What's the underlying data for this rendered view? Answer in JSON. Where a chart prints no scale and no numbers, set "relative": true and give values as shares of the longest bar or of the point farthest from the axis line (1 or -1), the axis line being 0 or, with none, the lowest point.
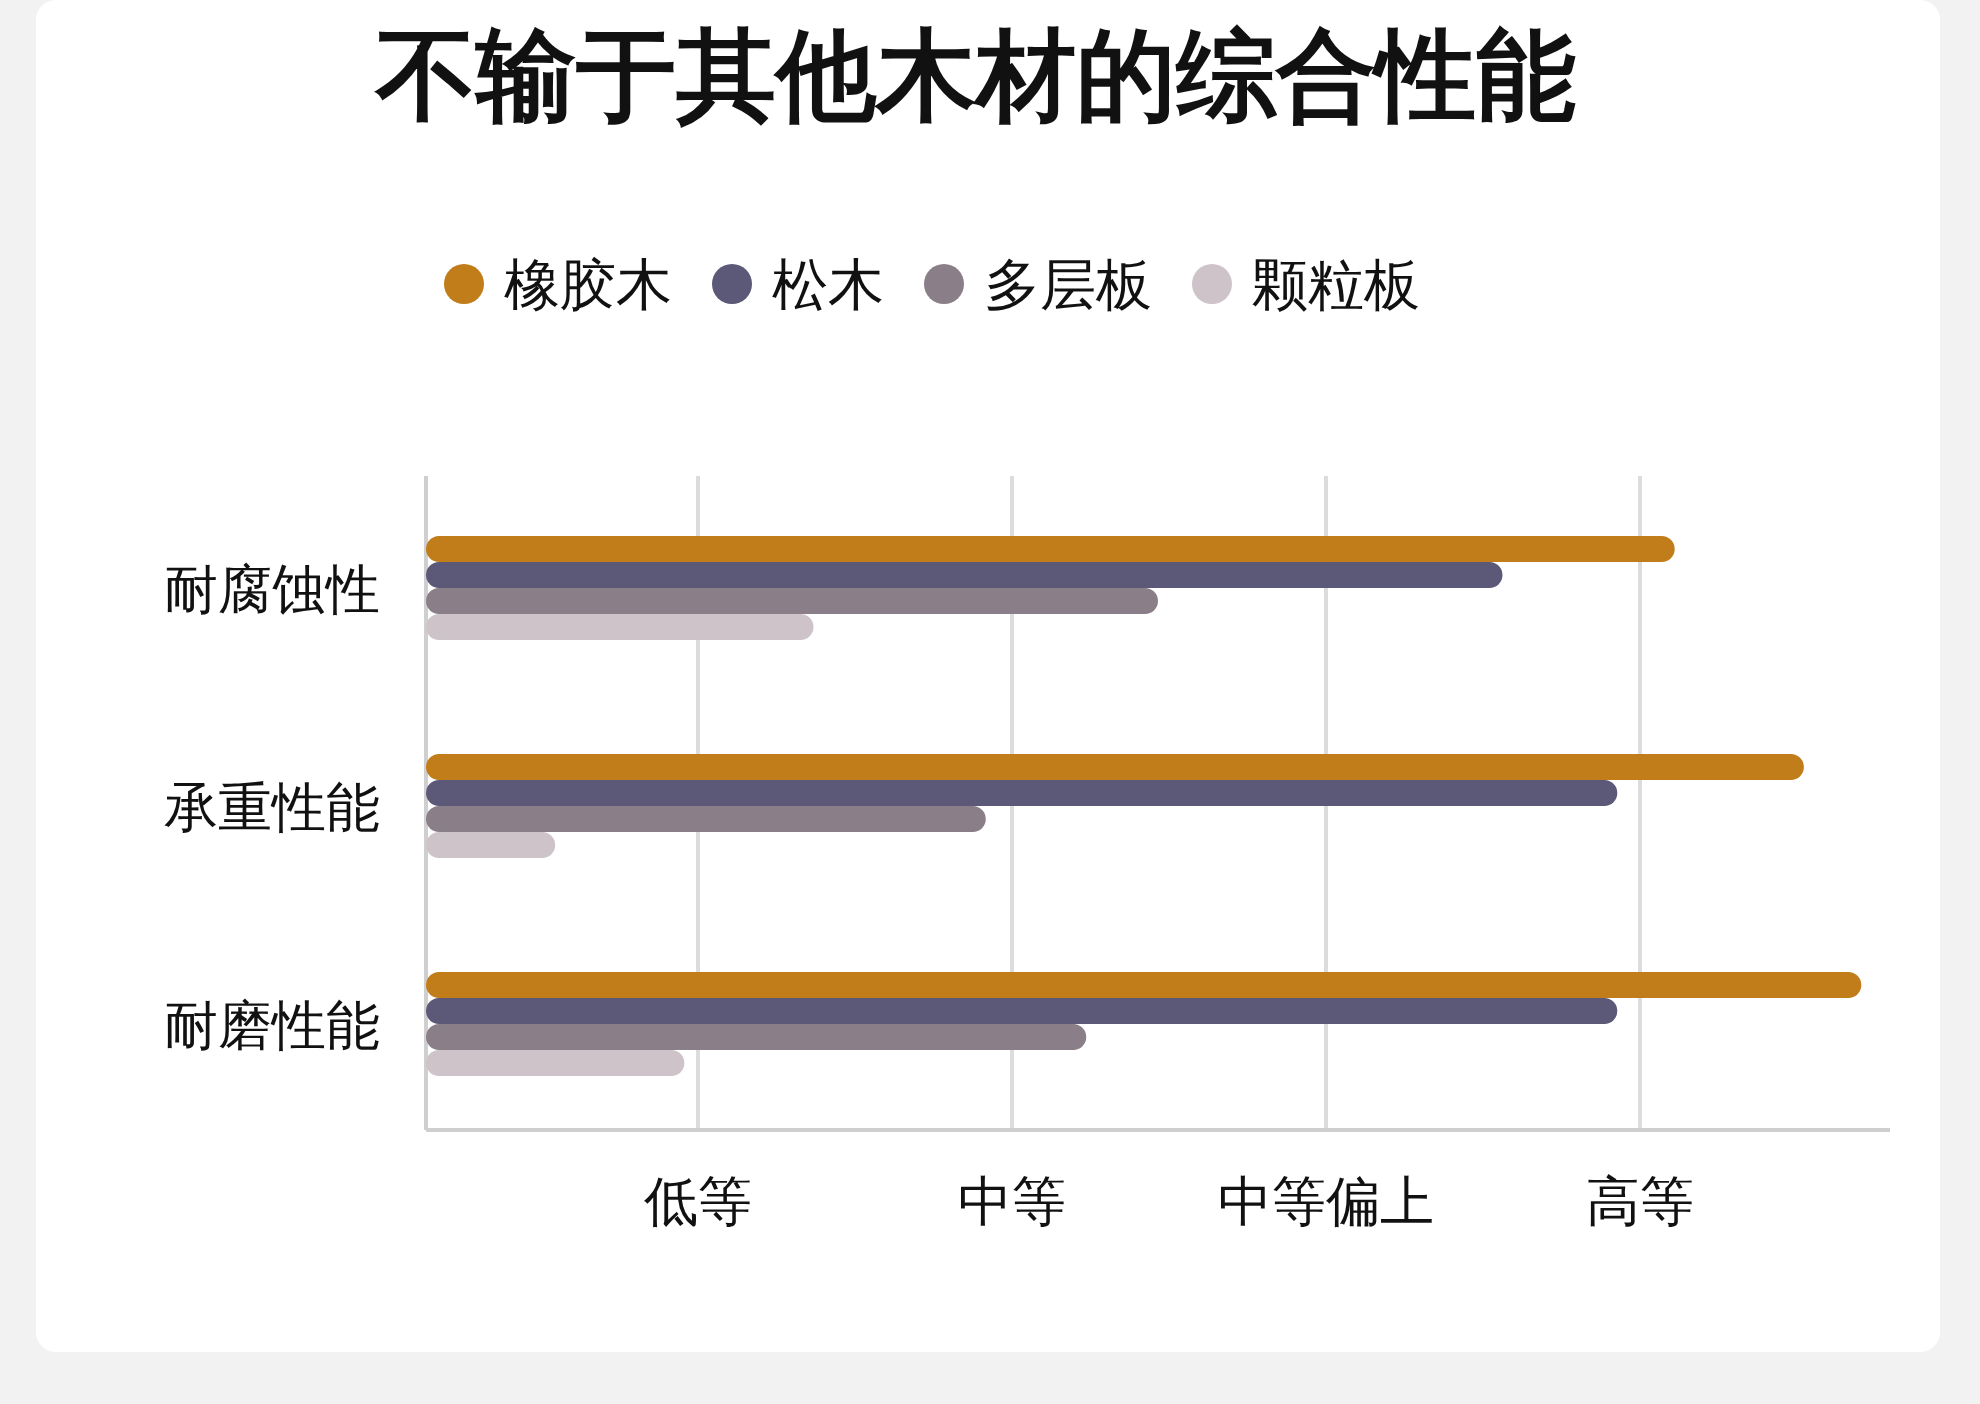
{
  "chart_data": {
    "type": "bar",
    "orientation": "horizontal",
    "relative": true,
    "title": "不输于其他木材的综合性能",
    "categories": [
      "耐腐蚀性",
      "承重性能",
      "耐磨性能"
    ],
    "series": [
      {
        "name": "橡胶木",
        "color": "#c07d1a",
        "values": [
          0.87,
          0.96,
          1
        ]
      },
      {
        "name": "松木",
        "color": "#5b5878",
        "values": [
          0.75,
          0.83,
          0.83
        ]
      },
      {
        "name": "多层板",
        "color": "#8a7f88",
        "values": [
          0.51,
          0.39,
          0.46
        ]
      },
      {
        "name": "颗粒板",
        "color": "#cdc3c9",
        "values": [
          0.27,
          0.09,
          0.18
        ]
      }
    ],
    "annotations": [
      "低等",
      "中等",
      "中等偏上",
      "高等"
    ],
    "legend": "top"
  }
}
